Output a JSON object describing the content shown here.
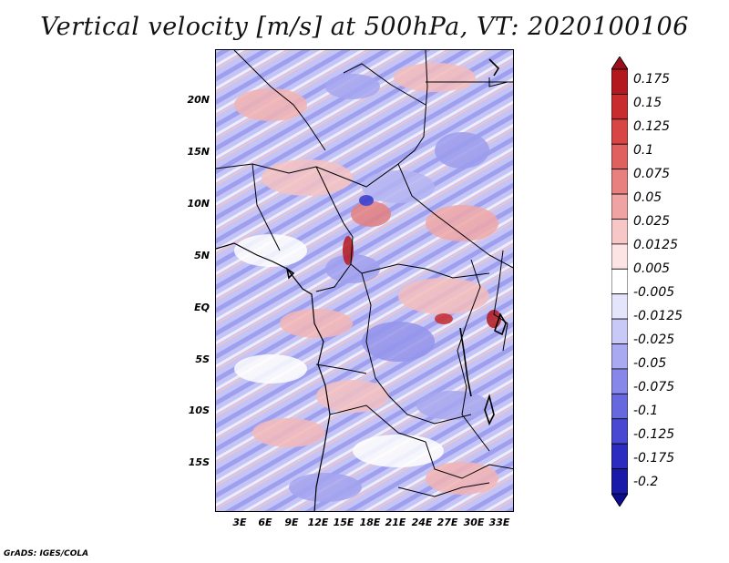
{
  "title": "Vertical velocity [m/s] at 500hPa, VT: 2020100106",
  "credit": "GrADS: IGES/COLA",
  "map": {
    "lat_labels": [
      "20N",
      "15N",
      "10N",
      "5N",
      "EQ",
      "5S",
      "10S",
      "15S"
    ],
    "lon_labels": [
      "3E",
      "6E",
      "9E",
      "12E",
      "15E",
      "18E",
      "21E",
      "24E",
      "27E",
      "30E",
      "33E"
    ]
  },
  "colorbar": {
    "labels": [
      "0.175",
      "0.15",
      "0.125",
      "0.1",
      "0.075",
      "0.05",
      "0.025",
      "0.0125",
      "0.005",
      "-0.005",
      "-0.0125",
      "-0.025",
      "-0.05",
      "-0.075",
      "-0.1",
      "-0.125",
      "-0.175",
      "-0.2"
    ],
    "colors": [
      "#9b0f1a",
      "#b3181e",
      "#c92c2c",
      "#d84545",
      "#e06060",
      "#e88080",
      "#f0a3a3",
      "#f7c6c6",
      "#fde4e4",
      "#ffffff",
      "#e4e4fb",
      "#c9c9f7",
      "#a9a9f2",
      "#8787ea",
      "#6767e0",
      "#4848d2",
      "#2c2cc0",
      "#1a1aa8",
      "#0d0d90"
    ]
  }
}
